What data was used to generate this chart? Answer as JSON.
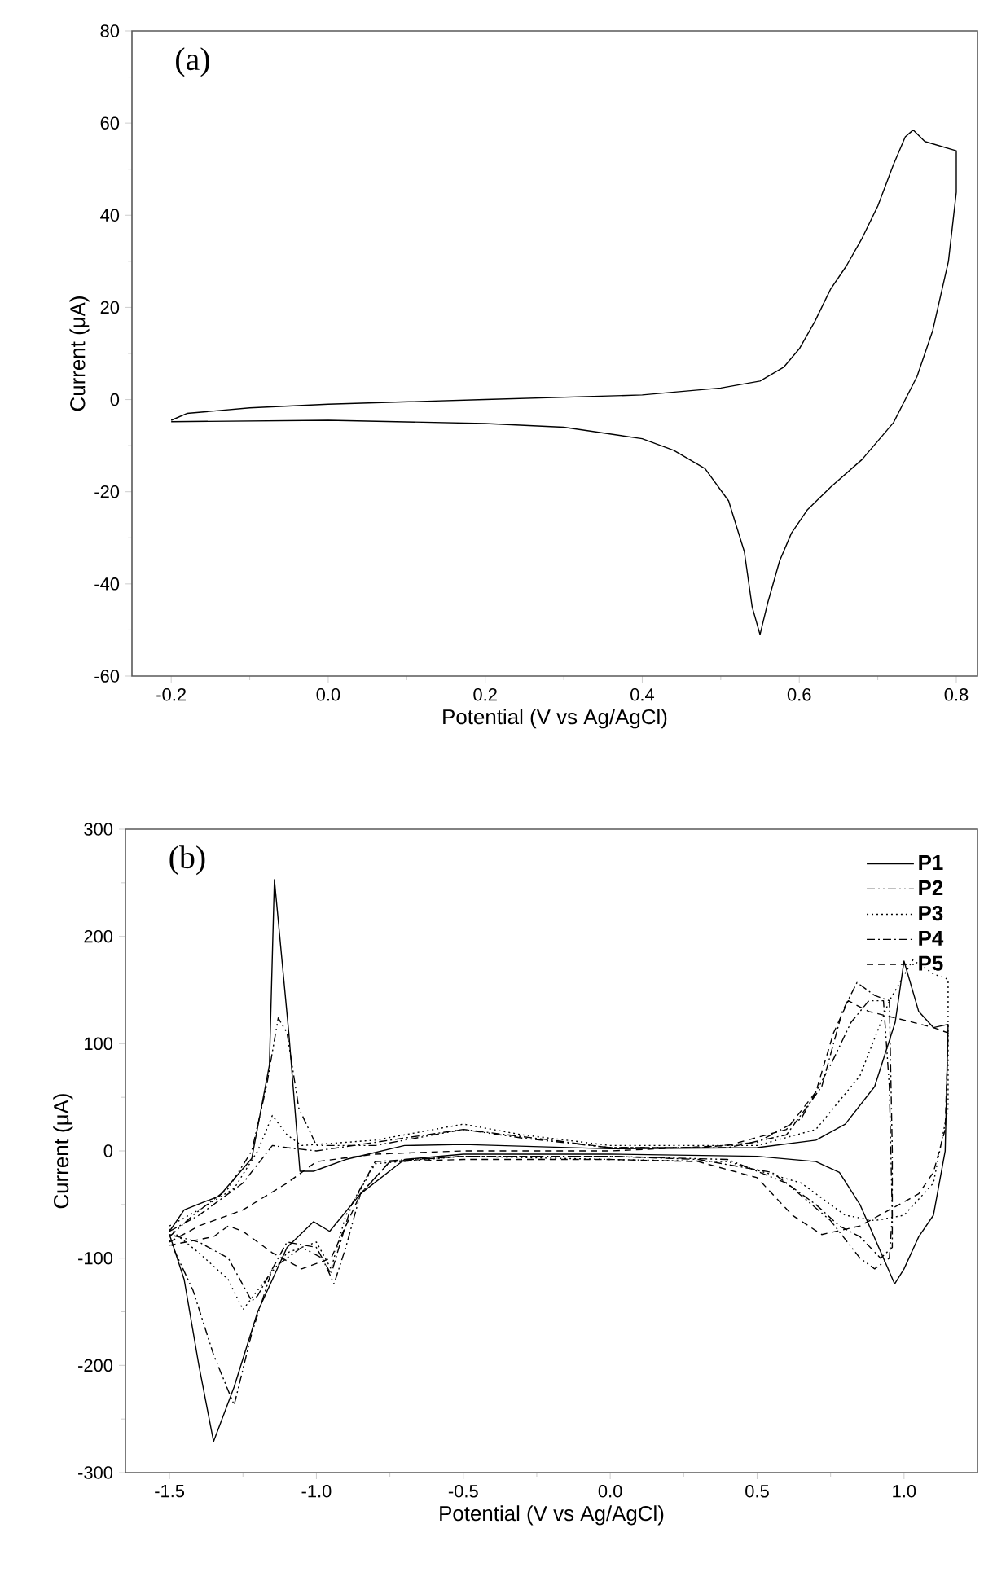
{
  "chart_data": [
    {
      "type": "line",
      "xlabel": "Potential (V vs Ag/AgCl)",
      "ylabel": "Current (μA)",
      "annotations": [
        "(a)"
      ],
      "xlim": [
        -0.25,
        0.827
      ],
      "ylim": [
        -60,
        80
      ],
      "xticks": [
        -0.2,
        {
          "value": 0,
          "label": "0.0"
        },
        0.2,
        0.4,
        0.6,
        0.8
      ],
      "yticks": [
        -60,
        -40,
        -20,
        0,
        20,
        40,
        60,
        80
      ],
      "grid": false,
      "legend": false,
      "marker": "none",
      "series": [
        {
          "color": "#000000",
          "line_style": "solid",
          "x": [
            -0.2,
            -0.18,
            -0.1,
            0.0,
            0.2,
            0.4,
            0.5,
            0.55,
            0.58,
            0.6,
            0.62,
            0.64,
            0.66,
            0.68,
            0.7,
            0.72,
            0.735,
            0.745,
            0.76,
            0.78,
            0.8,
            0.8,
            0.79,
            0.77,
            0.75,
            0.72,
            0.68,
            0.64,
            0.61,
            0.59,
            0.575,
            0.56,
            0.55,
            0.54,
            0.53,
            0.51,
            0.48,
            0.44,
            0.4,
            0.3,
            0.2,
            0.0,
            -0.2
          ],
          "values": [
            -4.5,
            -3,
            -1.8,
            -1,
            0,
            1,
            2.5,
            4,
            7,
            11,
            17,
            24,
            29,
            35,
            42,
            51,
            57,
            58.5,
            56,
            55,
            54,
            45,
            30,
            15,
            5,
            -5,
            -13,
            -19,
            -24,
            -29,
            -35,
            -44,
            -51,
            -45,
            -33,
            -22,
            -15,
            -11,
            -8.5,
            -6,
            -5.2,
            -4.5,
            -4.8
          ]
        }
      ]
    },
    {
      "type": "line",
      "xlabel": "Potential (V vs Ag/AgCl)",
      "ylabel": "Current (μA)",
      "annotations": [
        "(b)"
      ],
      "xlim": [
        -1.65,
        1.25
      ],
      "ylim": [
        -300,
        300
      ],
      "xticks": [
        -1.5,
        {
          "value": -1,
          "label": "-1.0"
        },
        -0.5,
        {
          "value": 0,
          "label": "0.0"
        },
        0.5,
        {
          "value": 1,
          "label": "1.0"
        }
      ],
      "yticks": [
        -300,
        -200,
        -100,
        0,
        100,
        200,
        300
      ],
      "grid": false,
      "legend": "top right",
      "marker": "none",
      "series": [
        {
          "name": "P1",
          "color": "#000000",
          "line_style": "solid",
          "x": [
            -1.5,
            -1.45,
            -1.33,
            -1.22,
            -1.16,
            -1.143,
            -1.094,
            -1.056,
            -1.01,
            -0.9,
            -0.7,
            -0.5,
            0,
            0.5,
            0.7,
            0.8,
            0.9,
            0.97,
            1.0,
            1.05,
            1.1,
            1.15,
            1.14,
            1.1,
            1.05,
            1.0,
            0.968,
            0.93,
            0.85,
            0.78,
            0.7,
            0.5,
            0,
            -0.5,
            -0.7,
            -0.85,
            -0.955,
            -1.01,
            -1.1,
            -1.2,
            -1.28,
            -1.35,
            -1.4,
            -1.45,
            -1.5
          ],
          "values": [
            -75,
            -55,
            -42,
            -7,
            80,
            253,
            110,
            -19,
            -19,
            -8,
            5,
            6,
            2,
            3,
            10,
            25,
            60,
            120,
            177,
            130,
            115,
            118,
            0,
            -60,
            -80,
            -110,
            -124,
            -100,
            -50,
            -20,
            -10,
            -5,
            -3,
            -3,
            -8,
            -40,
            -75,
            -66,
            -90,
            -150,
            -220,
            -271,
            -200,
            -120,
            -78
          ]
        },
        {
          "name": "P2",
          "color": "#000000",
          "line_style": "dashdotdot",
          "x": [
            -1.5,
            -1.42,
            -1.3,
            -1.22,
            -1.17,
            -1.13,
            -1.1,
            -1.06,
            -1.0,
            -0.8,
            -0.6,
            -0.5,
            -0.3,
            0,
            0.3,
            0.5,
            0.65,
            0.75,
            0.82,
            0.88,
            0.93,
            0.95,
            0.96,
            0.95,
            0.9,
            0.85,
            0.75,
            0.6,
            0.4,
            0,
            -0.5,
            -0.75,
            -0.85,
            -0.9,
            -0.94,
            -0.98,
            -1.05,
            -1.15,
            -1.22,
            -1.28,
            -1.35,
            -1.42,
            -1.5
          ],
          "values": [
            -80,
            -60,
            -35,
            0,
            60,
            124,
            110,
            40,
            5,
            5,
            15,
            20,
            12,
            3,
            3,
            8,
            30,
            80,
            120,
            140,
            140,
            60,
            -60,
            -100,
            -110,
            -100,
            -65,
            -30,
            -8,
            -5,
            -5,
            -10,
            -40,
            -90,
            -124,
            -100,
            -90,
            -110,
            -170,
            -237,
            -190,
            -130,
            -83
          ]
        },
        {
          "name": "P3",
          "color": "#000000",
          "line_style": "dotted",
          "x": [
            -1.5,
            -1.4,
            -1.28,
            -1.2,
            -1.15,
            -1.1,
            -1.05,
            -0.8,
            -0.5,
            -0.3,
            0,
            0.5,
            0.7,
            0.85,
            0.95,
            1.03,
            1.1,
            1.15,
            1.15,
            1.1,
            1.0,
            0.9,
            0.8,
            0.65,
            0.4,
            0,
            -0.5,
            -0.8,
            -0.9,
            -0.95,
            -1.0,
            -1.1,
            -1.2,
            -1.25,
            -1.3,
            -1.4,
            -1.5
          ],
          "values": [
            -70,
            -55,
            -35,
            0,
            33,
            15,
            5,
            10,
            25,
            15,
            5,
            5,
            20,
            70,
            140,
            178,
            165,
            160,
            40,
            -30,
            -60,
            -65,
            -60,
            -30,
            -10,
            -8,
            -5,
            -12,
            -60,
            -110,
            -85,
            -95,
            -130,
            -148,
            -120,
            -95,
            -73
          ]
        },
        {
          "name": "P4",
          "color": "#000000",
          "line_style": "dashdot",
          "x": [
            -1.5,
            -1.4,
            -1.25,
            -1.15,
            -1.1,
            -1.0,
            -0.8,
            -0.5,
            -0.2,
            0,
            0.4,
            0.6,
            0.72,
            0.79,
            0.84,
            0.9,
            0.95,
            0.96,
            0.96,
            0.92,
            0.85,
            0.78,
            0.7,
            0.55,
            0.3,
            0,
            -0.5,
            -0.8,
            -0.88,
            -0.95,
            -1.0,
            -1.1,
            -1.2,
            -1.22,
            -1.3,
            -1.4,
            -1.5
          ],
          "values": [
            -75,
            -60,
            -30,
            5,
            3,
            0,
            8,
            20,
            10,
            3,
            3,
            15,
            60,
            130,
            157,
            145,
            140,
            0,
            -90,
            -100,
            -80,
            -70,
            -50,
            -20,
            -8,
            -5,
            -5,
            -10,
            -50,
            -115,
            -90,
            -85,
            -135,
            -140,
            -100,
            -85,
            -78
          ]
        },
        {
          "name": "P5",
          "color": "#000000",
          "line_style": "dashed",
          "x": [
            -1.5,
            -1.4,
            -1.25,
            -1.1,
            -1.0,
            -0.8,
            -0.5,
            0,
            0.4,
            0.6,
            0.7,
            0.76,
            0.81,
            0.88,
            1.0,
            1.1,
            1.15,
            1.14,
            1.1,
            1.05,
            0.95,
            0.85,
            0.72,
            0.62,
            0.5,
            0.3,
            0,
            -0.5,
            -0.75,
            -0.85,
            -0.95,
            -1.05,
            -1.15,
            -1.25,
            -1.3,
            -1.35,
            -1.5
          ],
          "values": [
            -85,
            -70,
            -55,
            -30,
            -10,
            -3,
            0,
            0,
            5,
            20,
            55,
            110,
            140,
            130,
            122,
            115,
            110,
            20,
            -20,
            -40,
            -55,
            -70,
            -78,
            -60,
            -25,
            -10,
            -8,
            -8,
            -10,
            -40,
            -100,
            -110,
            -95,
            -75,
            -70,
            -80,
            -88
          ]
        }
      ]
    }
  ]
}
